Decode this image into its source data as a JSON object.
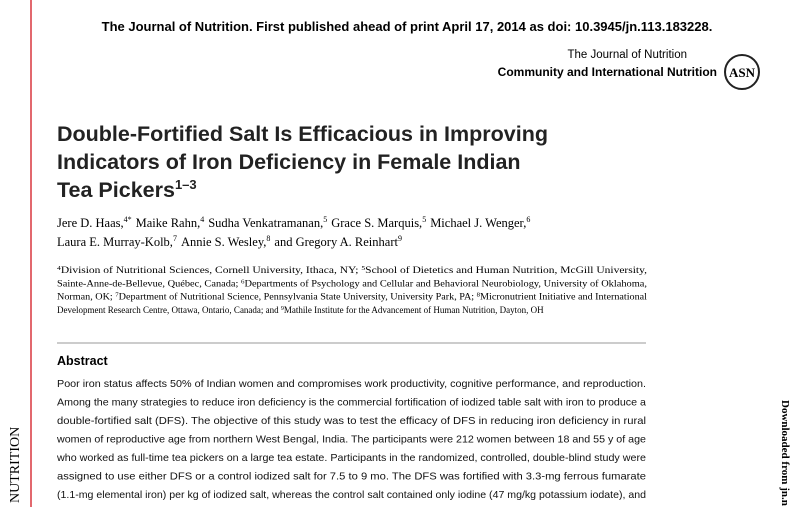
{
  "top_notice": "The Journal of Nutrition. First published ahead of print April 17, 2014 as doi: 10.3945/jn.113.183228.",
  "header": {
    "journal": "The Journal of Nutrition",
    "section": "Community and International Nutrition",
    "logo": "ASN"
  },
  "title": {
    "lines": [
      "Double-Fortified Salt Is Efficacious in Improving",
      "Indicators of Iron Deficiency in Female Indian",
      "Tea Pickers"
    ],
    "sup": "1–3"
  },
  "authors": [
    [
      {
        "name": "Jere D. Haas,",
        "sup": "4*"
      },
      {
        "name": "Maike Rahn,",
        "sup": "4"
      },
      {
        "name": "Sudha Venkatramanan,",
        "sup": "5"
      },
      {
        "name": "Grace S. Marquis,",
        "sup": "5"
      },
      {
        "name": "Michael J. Wenger,",
        "sup": "6"
      }
    ],
    [
      {
        "name": "Laura E. Murray-Kolb,",
        "sup": "7"
      },
      {
        "name": "Annie S. Wesley,",
        "sup": "8"
      },
      {
        "name": "and Gregory A. Reinhart",
        "sup": "9"
      }
    ]
  ],
  "affiliations": [
    [
      {
        "s": "4"
      },
      {
        "t": "Division of Nutritional Sciences, Cornell University, Ithaca, NY; "
      },
      {
        "s": "5"
      },
      {
        "t": "School of Dietetics and Human Nutrition, McGill University,"
      }
    ],
    [
      {
        "t": "Sainte-Anne-de-Bellevue, Québec, Canada; "
      },
      {
        "s": "6"
      },
      {
        "t": "Departments of Psychology and Cellular and Behavioral Neurobiology, University of Oklahoma,"
      }
    ],
    [
      {
        "t": "Norman, OK; "
      },
      {
        "s": "7"
      },
      {
        "t": "Department of Nutritional Science, Pennsylvania State University, University Park, PA; "
      },
      {
        "s": "8"
      },
      {
        "t": "Micronutrient Initiative and International"
      }
    ],
    [
      {
        "t": "Development Research Centre, Ottawa, Ontario, Canada; and "
      },
      {
        "s": "9"
      },
      {
        "t": "Mathile Institute for the Advancement of Human Nutrition, Dayton, OH"
      }
    ]
  ],
  "abstract": {
    "heading": "Abstract",
    "lines": [
      "Poor iron status affects 50% of Indian women and compromises work productivity, cognitive performance, and reproduction.",
      "Among the many strategies to reduce iron deficiency is the commercial fortification of iodized table salt with iron to produce a",
      "double-fortified salt (DFS). The objective of this study was to test the efficacy of DFS in reducing iron deficiency in rural",
      "women of reproductive age from northern West Bengal, India. The participants were 212 women between 18 and 55 y of age",
      "who worked as full-time tea pickers on a large tea estate. Participants in the randomized, controlled, double-blind study were",
      "assigned to use either DFS or a control iodized salt for 7.5 to 9 mo. The DFS was fortified with 3.3-mg ferrous fumarate",
      "(1.1-mg elemental iron) per kg of iodized salt, whereas the control salt contained only iodine (47 mg/kg potassium iodate), and"
    ]
  },
  "margin_left": "NUTRITION",
  "margin_right": "Downloaded from jn.n"
}
